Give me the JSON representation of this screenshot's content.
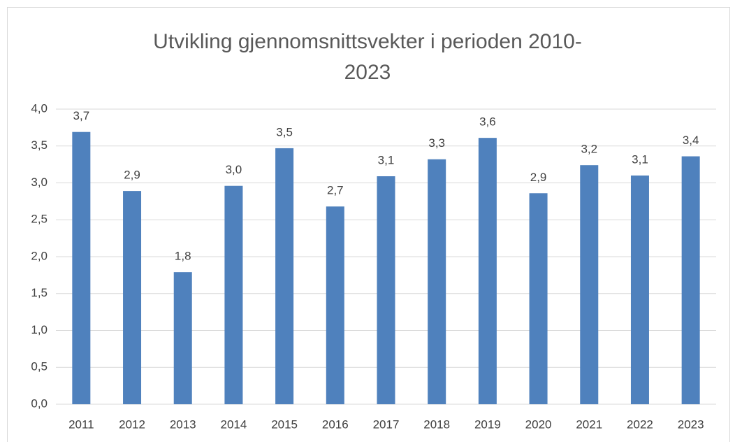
{
  "chart_data": {
    "type": "bar",
    "title": "Utvikling gjennomsnittsvekter i perioden 2010-2023",
    "categories": [
      "2011",
      "2012",
      "2013",
      "2014",
      "2015",
      "2016",
      "2017",
      "2018",
      "2019",
      "2020",
      "2021",
      "2022",
      "2023"
    ],
    "values": [
      3.69,
      2.89,
      1.79,
      2.96,
      3.47,
      2.68,
      3.09,
      3.32,
      3.61,
      2.86,
      3.24,
      3.1,
      3.36
    ],
    "value_labels": [
      "3,7",
      "2,9",
      "1,8",
      "3,0",
      "3,5",
      "2,7",
      "3,1",
      "3,3",
      "3,6",
      "2,9",
      "3,2",
      "3,1",
      "3,4"
    ],
    "color": "#4f81bd",
    "ylim": [
      0,
      4
    ],
    "yticks": [
      {
        "value": 0,
        "label": "0,0"
      },
      {
        "value": 0.5,
        "label": "0,5"
      },
      {
        "value": 1,
        "label": "1,0"
      },
      {
        "value": 1.5,
        "label": "1,5"
      },
      {
        "value": 2,
        "label": "2,0"
      },
      {
        "value": 2.5,
        "label": "2,5"
      },
      {
        "value": 3,
        "label": "3,0"
      },
      {
        "value": 3.5,
        "label": "3,5"
      },
      {
        "value": 4,
        "label": "4,0"
      }
    ],
    "grid": true
  }
}
